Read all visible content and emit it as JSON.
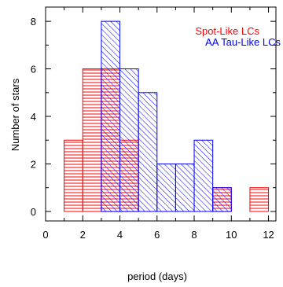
{
  "chart_data": {
    "type": "bar",
    "chart_kind": "histogram",
    "title": "",
    "xlabel": "period (days)",
    "ylabel": "Number of stars",
    "xlim": [
      0,
      12.4
    ],
    "ylim": [
      -0.4,
      8.6
    ],
    "grid": false,
    "legend_position": "top-right",
    "x_ticks": [
      "0",
      "2",
      "4",
      "6",
      "8",
      "10",
      "12"
    ],
    "y_ticks": [
      "0",
      "2",
      "4",
      "6",
      "8"
    ],
    "series": [
      {
        "name": "Spot-Like LCs",
        "color": "#ff0000",
        "fill_pattern": "horizontal-hatch",
        "bins": [
          {
            "x0": 1,
            "x1": 2,
            "value": 3
          },
          {
            "x0": 2,
            "x1": 3,
            "value": 6
          },
          {
            "x0": 3,
            "x1": 4,
            "value": 6
          },
          {
            "x0": 4,
            "x1": 5,
            "value": 3
          },
          {
            "x0": 5,
            "x1": 6,
            "value": 0
          },
          {
            "x0": 6,
            "x1": 7,
            "value": 0
          },
          {
            "x0": 7,
            "x1": 8,
            "value": 0
          },
          {
            "x0": 8,
            "x1": 9,
            "value": 0
          },
          {
            "x0": 9,
            "x1": 10,
            "value": 1
          },
          {
            "x0": 10,
            "x1": 11,
            "value": 0
          },
          {
            "x0": 11,
            "x1": 12,
            "value": 1
          }
        ]
      },
      {
        "name": "AA Tau-Like LCs",
        "color": "#0000ff",
        "fill_pattern": "diagonal-hatch",
        "bins": [
          {
            "x0": 3,
            "x1": 4,
            "value": 8
          },
          {
            "x0": 4,
            "x1": 5,
            "value": 6
          },
          {
            "x0": 5,
            "x1": 6,
            "value": 5
          },
          {
            "x0": 6,
            "x1": 7,
            "value": 2
          },
          {
            "x0": 7,
            "x1": 8,
            "value": 2
          },
          {
            "x0": 8,
            "x1": 9,
            "value": 3
          },
          {
            "x0": 9,
            "x1": 10,
            "value": 1
          }
        ]
      }
    ]
  }
}
